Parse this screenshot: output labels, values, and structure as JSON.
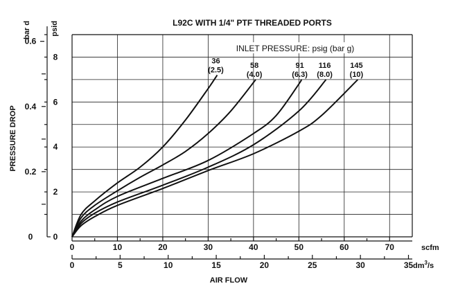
{
  "chart_data": {
    "type": "line",
    "title": "L92C WITH 1/4\" PTF  THREADED PORTS",
    "ylabel": "PRESSURE DROP",
    "xlabel": "AIR FLOW",
    "legend_title": "INLET PRESSURE: psig (bar g)",
    "x_primary": {
      "unit": "scfm",
      "range": [
        0,
        75
      ],
      "ticks": [
        "0",
        "10",
        "20",
        "30",
        "40",
        "50",
        "60",
        "70"
      ]
    },
    "x_secondary": {
      "unit": "dm³/s",
      "unit_base": "dm",
      "unit_sup": "3",
      "unit_suffix": "/s",
      "ticks": [
        "0",
        "5",
        "10",
        "15",
        "20",
        "25",
        "30",
        "35"
      ]
    },
    "y_primary": {
      "unit": "psid",
      "range": [
        0,
        9
      ],
      "ticks": [
        "0",
        "2",
        "4",
        "6",
        "8"
      ]
    },
    "y_secondary": {
      "unit": "bar d",
      "ticks": [
        "0",
        "0.2",
        "0.4",
        "0.6"
      ]
    },
    "grid": true,
    "series": [
      {
        "name": "36",
        "sub": "(2.5)",
        "x": [
          0,
          2,
          5,
          10,
          15,
          20,
          25,
          30,
          32
        ],
        "y": [
          0,
          1.0,
          1.6,
          2.4,
          3.1,
          4.0,
          5.2,
          6.6,
          7.2
        ]
      },
      {
        "name": "58",
        "sub": "(4.0)",
        "x": [
          0,
          2,
          5,
          10,
          15,
          20,
          25,
          30,
          35,
          40.5
        ],
        "y": [
          0,
          0.85,
          1.4,
          2.05,
          2.65,
          3.2,
          3.8,
          4.6,
          5.6,
          7.0
        ]
      },
      {
        "name": "91",
        "sub": "(6.3)",
        "x": [
          0,
          2,
          5,
          10,
          20,
          30,
          40,
          45,
          50,
          50.5
        ],
        "y": [
          0,
          0.7,
          1.2,
          1.8,
          2.6,
          3.4,
          4.6,
          5.4,
          6.8,
          7.0
        ]
      },
      {
        "name": "116",
        "sub": "(8.0)",
        "x": [
          0,
          2,
          5,
          10,
          20,
          30,
          40,
          50,
          56
        ],
        "y": [
          0,
          0.6,
          1.05,
          1.55,
          2.3,
          3.1,
          4.1,
          5.6,
          7.0
        ]
      },
      {
        "name": "145",
        "sub": "(10)",
        "x": [
          0,
          2,
          5,
          10,
          20,
          30,
          40,
          50,
          55,
          63
        ],
        "y": [
          0,
          0.5,
          0.9,
          1.4,
          2.15,
          2.95,
          3.7,
          4.7,
          5.4,
          7.0
        ]
      }
    ]
  }
}
